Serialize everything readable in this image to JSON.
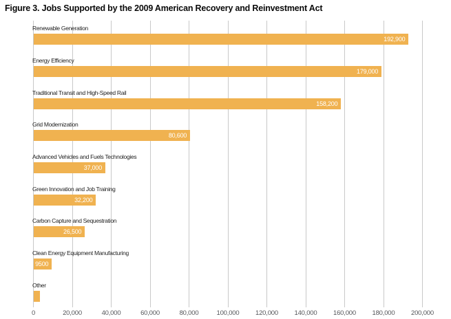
{
  "figure_title": "Figure 3. Jobs Supported by the 2009 American Recovery and Reinvestment Act",
  "chart_data": {
    "type": "bar",
    "orientation": "horizontal",
    "title": "Figure 3. Jobs Supported by the 2009 American Recovery and Reinvestment Act",
    "categories": [
      "Renewable Generation",
      "Energy Efficiency",
      "Traditional Transit and High-Speed Rail",
      "Grid Modernization",
      "Advanced Vehicles and Fuels Technologies",
      "Green Innovation and Job Training",
      "Carbon Capture and Sequestration",
      "Clean Energy Equipment Manufacturing",
      "Other"
    ],
    "values": [
      192900,
      179000,
      158200,
      80600,
      37000,
      32200,
      26500,
      9500,
      3500
    ],
    "value_labels": [
      "192,900",
      "179,000",
      "158,200",
      "80,600",
      "37,000",
      "32,200",
      "26,500",
      "9500",
      ""
    ],
    "xlabel": "",
    "ylabel": "",
    "xlim": [
      0,
      200000
    ],
    "x_ticks": [
      0,
      20000,
      40000,
      60000,
      80000,
      100000,
      120000,
      140000,
      160000,
      180000,
      200000
    ],
    "x_tick_labels": [
      "0",
      "20,000",
      "40,000",
      "60,000",
      "80,000",
      "100,000",
      "120,000",
      "140,000",
      "160,000",
      "180,000",
      "200,000"
    ],
    "grid": "vertical-only",
    "legend": "none",
    "bar_color": "#F0B250"
  },
  "colors": {
    "bar": "#F0B250",
    "gridline": "#C8C8C8",
    "axis_text": "#55565A",
    "category_text": "#1E1E1E",
    "value_text": "#FFFFFF",
    "title_text": "#0A0A0A",
    "background": "#FFFFFF"
  }
}
